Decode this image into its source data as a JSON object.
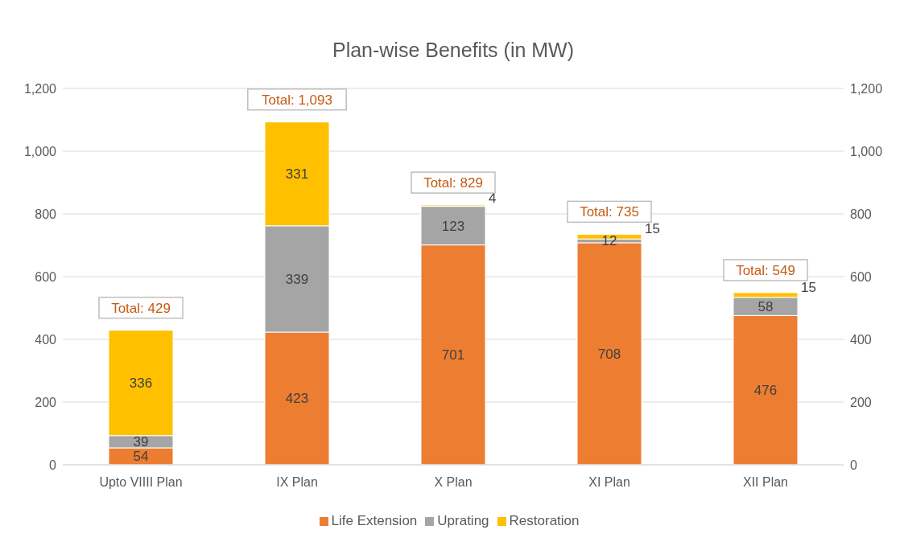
{
  "chart_data": {
    "type": "bar",
    "title": "Plan-wise Benefits (in MW)",
    "categories": [
      "Upto VIIII Plan",
      "IX Plan",
      "X Plan",
      "XI Plan",
      "XII Plan"
    ],
    "series": [
      {
        "name": "Life Extension",
        "color": "#ed7d31",
        "values": [
          54,
          423,
          701,
          708,
          476
        ]
      },
      {
        "name": "Uprating",
        "color": "#a5a5a5",
        "values": [
          39,
          339,
          123,
          12,
          58
        ]
      },
      {
        "name": "Restoration",
        "color": "#ffc000",
        "values": [
          336,
          331,
          4,
          15,
          15
        ]
      }
    ],
    "stacked": true,
    "data_labels": true,
    "totals": [
      "Total: 429",
      "Total: 1,093",
      "Total: 829",
      "Total: 735",
      "Total: 549"
    ],
    "ylim": [
      0,
      1200
    ],
    "yticks": [
      0,
      200,
      400,
      600,
      800,
      {
        "value": 1000,
        "label": "1,000"
      },
      {
        "value": 1200,
        "label": "1,200"
      }
    ],
    "y2lim": [
      0,
      1200
    ],
    "y2ticks": [
      0,
      200,
      400,
      600,
      800,
      {
        "value": 1000,
        "label": "1,000"
      },
      {
        "value": 1200,
        "label": "1,200"
      }
    ],
    "grid": "y",
    "legend": "bottom"
  }
}
